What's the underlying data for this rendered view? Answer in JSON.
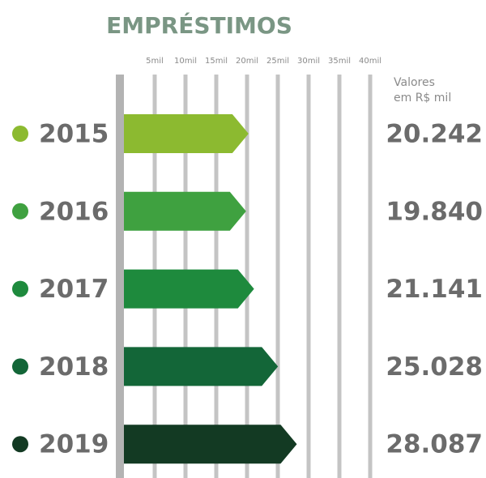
{
  "chart_data": {
    "type": "arrow-bar",
    "title": "EMPRÉSTIMOS",
    "annotations": [
      "Valores",
      "em R$ mil"
    ],
    "categories": [
      "2015",
      "2016",
      "2017",
      "2018",
      "2019"
    ],
    "values": [
      20242,
      19840,
      21141,
      25028,
      28087
    ],
    "value_labels": [
      "20.242",
      "19.840",
      "21.141",
      "25.028",
      "28.087"
    ],
    "colors": [
      "#8cba30",
      "#3fa140",
      "#1e8a3d",
      "#136638",
      "#133a23"
    ],
    "xlim": [
      0,
      40000
    ],
    "xticks": [
      {
        "value": 5000,
        "label": "5mil"
      },
      {
        "value": 10000,
        "label": "10mil"
      },
      {
        "value": 15000,
        "label": "15mil"
      },
      {
        "value": 20000,
        "label": "20mil"
      },
      {
        "value": 25000,
        "label": "25mil"
      },
      {
        "value": 30000,
        "label": "30mil"
      },
      {
        "value": 35000,
        "label": "35mil"
      },
      {
        "value": 40000,
        "label": "40mil"
      }
    ],
    "grid": true
  }
}
